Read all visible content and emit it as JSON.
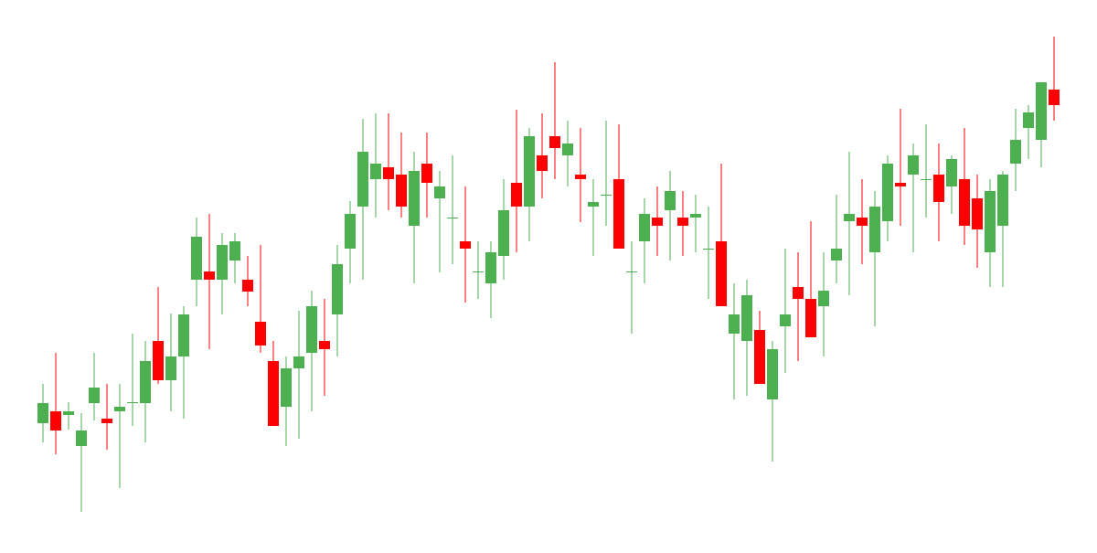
{
  "chart_data": {
    "type": "candlestick",
    "up_color": "#4caf50",
    "down_color": "#ff0000",
    "ylim": [
      0,
      600
    ],
    "open": [
      137,
      150,
      146,
      112,
      159,
      142,
      150,
      160,
      159,
      227,
      184,
      210,
      294,
      303,
      294,
      315,
      294,
      248,
      205,
      155,
      197,
      214,
      227,
      256,
      328,
      374,
      404,
      417,
      409,
      353,
      421,
      383,
      362,
      336,
      303,
      290,
      320,
      400,
      374,
      430,
      451,
      430,
      409,
      374,
      387,
      404,
      303,
      336,
      362,
      370,
      362,
      362,
      328,
      336,
      235,
      227,
      239,
      163,
      243,
      286,
      273,
      265,
      315,
      358,
      362,
      324,
      358,
      400,
      409,
      404,
      409,
      396,
      404,
      383,
      324,
      353,
      421,
      460,
      447,
      502
    ],
    "high": [
      180,
      214,
      160,
      148,
      214,
      180,
      180,
      235,
      227,
      286,
      257,
      265,
      362,
      366,
      345,
      345,
      320,
      332,
      227,
      210,
      260,
      282,
      273,
      332,
      380,
      470,
      476,
      476,
      455,
      434,
      455,
      413,
      430,
      396,
      336,
      336,
      404,
      480,
      460,
      476,
      532,
      468,
      460,
      404,
      468,
      464,
      336,
      383,
      396,
      413,
      391,
      387,
      374,
      421,
      290,
      294,
      260,
      227,
      328,
      324,
      358,
      324,
      387,
      434,
      404,
      391,
      430,
      481,
      443,
      464,
      443,
      430,
      460,
      409,
      404,
      413,
      481,
      485,
      510,
      560
    ],
    "low": [
      116,
      103,
      130,
      40,
      140,
      108,
      66,
      134,
      116,
      180,
      150,
      142,
      265,
      218,
      256,
      290,
      265,
      214,
      134,
      112,
      120,
      150,
      167,
      210,
      290,
      294,
      362,
      370,
      362,
      290,
      362,
      302,
      311,
      269,
      273,
      252,
      294,
      324,
      336,
      383,
      404,
      396,
      357,
      320,
      353,
      328,
      235,
      290,
      320,
      315,
      320,
      324,
      273,
      265,
      163,
      167,
      180,
      95,
      192,
      205,
      231,
      210,
      290,
      277,
      311,
      243,
      336,
      353,
      324,
      362,
      336,
      366,
      332,
      307,
      286,
      286,
      391,
      426,
      417,
      468
    ],
    "close": [
      159,
      129,
      150,
      129,
      176,
      137,
      155,
      160,
      205,
      184,
      210,
      256,
      341,
      294,
      332,
      336,
      281,
      222,
      134,
      197,
      210,
      265,
      218,
      311,
      366,
      434,
      421,
      404,
      374,
      413,
      400,
      396,
      362,
      328,
      303,
      324,
      370,
      374,
      451,
      413,
      438,
      443,
      404,
      379,
      387,
      328,
      303,
      366,
      353,
      391,
      353,
      366,
      328,
      265,
      256,
      277,
      180,
      218,
      256,
      273,
      231,
      282,
      328,
      366,
      353,
      374,
      421,
      396,
      430,
      404,
      379,
      426,
      353,
      349,
      391,
      409,
      447,
      477,
      510,
      485
    ]
  }
}
